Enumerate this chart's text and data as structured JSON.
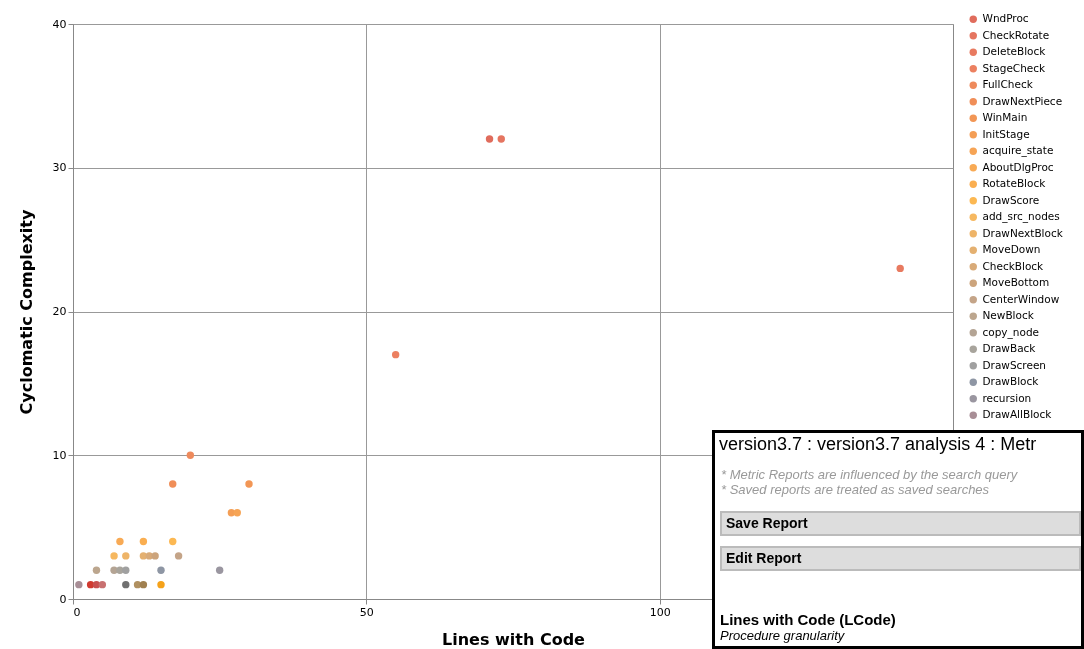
{
  "chart_data": [
    {
      "type": "scatter",
      "xlabel": "Lines with Code",
      "ylabel": "Cyclomatic Complexity",
      "xlim": [
        0,
        150
      ],
      "ylim": [
        0,
        40
      ],
      "xticks": [
        0,
        50,
        100
      ],
      "yticks": [
        0,
        10,
        20,
        30,
        40
      ],
      "grid": true,
      "legend": "right",
      "marker": "circle",
      "series": [
        {
          "name": "WndProc",
          "color": "#e06c5c",
          "x": [
            71
          ],
          "values": [
            32
          ]
        },
        {
          "name": "CheckRotate",
          "color": "#e57560",
          "x": [
            73
          ],
          "values": [
            32
          ]
        },
        {
          "name": "DeleteBlock",
          "color": "#e87a60",
          "x": [
            141
          ],
          "values": [
            23
          ]
        },
        {
          "name": "StageCheck",
          "color": "#ec8060",
          "x": [
            55
          ],
          "values": [
            17
          ]
        },
        {
          "name": "FullCheck",
          "color": "#ee8a5c",
          "x": [
            20
          ],
          "values": [
            10
          ]
        },
        {
          "name": "DrawNextPiece",
          "color": "#f08e58",
          "x": [
            17
          ],
          "values": [
            8
          ]
        },
        {
          "name": "WinMain",
          "color": "#f29655",
          "x": [
            30
          ],
          "values": [
            8
          ]
        },
        {
          "name": "InitStage",
          "color": "#f49e55",
          "x": [
            27
          ],
          "values": [
            6
          ]
        },
        {
          "name": "acquire_state",
          "color": "#f6a455",
          "x": [
            28
          ],
          "values": [
            6
          ]
        },
        {
          "name": "AboutDlgProc",
          "color": "#f8aa55",
          "x": [
            8
          ],
          "values": [
            4
          ]
        },
        {
          "name": "RotateBlock",
          "color": "#faae50",
          "x": [
            12
          ],
          "values": [
            4
          ]
        },
        {
          "name": "DrawScore",
          "color": "#fcb852",
          "x": [
            17
          ],
          "values": [
            4
          ]
        },
        {
          "name": "add_src_nodes",
          "color": "#f6b860",
          "x": [
            7
          ],
          "values": [
            3
          ]
        },
        {
          "name": "DrawNextBlock",
          "color": "#eeb468",
          "x": [
            9
          ],
          "values": [
            3
          ]
        },
        {
          "name": "MoveDown",
          "color": "#e4b070",
          "x": [
            12
          ],
          "values": [
            3
          ]
        },
        {
          "name": "CheckBlock",
          "color": "#d8aa78",
          "x": [
            13
          ],
          "values": [
            3
          ]
        },
        {
          "name": "MoveBottom",
          "color": "#cca47c",
          "x": [
            14
          ],
          "values": [
            3
          ]
        },
        {
          "name": "CenterWindow",
          "color": "#c4a488",
          "x": [
            18
          ],
          "values": [
            3
          ]
        },
        {
          "name": "NewBlock",
          "color": "#bca68e",
          "x": [
            4
          ],
          "values": [
            2
          ]
        },
        {
          "name": "copy_node",
          "color": "#b4a494",
          "x": [
            7
          ],
          "values": [
            2
          ]
        },
        {
          "name": "DrawBack",
          "color": "#a8a49c",
          "x": [
            8
          ],
          "values": [
            2
          ]
        },
        {
          "name": "DrawScreen",
          "color": "#a0a0a0",
          "x": [
            9
          ],
          "values": [
            2
          ]
        },
        {
          "name": "DrawBlock",
          "color": "#8e96a4",
          "x": [
            15
          ],
          "values": [
            2
          ]
        },
        {
          "name": "recursion",
          "color": "#9a96a0",
          "x": [
            25
          ],
          "values": [
            2
          ]
        },
        {
          "name": "DrawAllBlock",
          "color": "#a88e96",
          "x": [
            1
          ],
          "values": [
            1
          ]
        },
        {
          "color": "#d03a30",
          "x": [
            3
          ],
          "values": [
            1
          ]
        },
        {
          "color": "#c85050",
          "x": [
            4
          ],
          "values": [
            1
          ]
        },
        {
          "color": "#c87070",
          "x": [
            5
          ],
          "values": [
            1
          ]
        },
        {
          "color": "#707070",
          "x": [
            9
          ],
          "values": [
            1
          ]
        },
        {
          "color": "#b09060",
          "x": [
            11
          ],
          "values": [
            1
          ]
        },
        {
          "color": "#a08050",
          "x": [
            12
          ],
          "values": [
            1
          ]
        },
        {
          "color": "#f5a21a",
          "x": [
            15
          ],
          "values": [
            1
          ]
        }
      ]
    },
    {
      "type": "other",
      "title": "version3.7 : version3.7 analysis 4 : Metr",
      "annotations": [
        "* Metric Reports are influenced by the search query",
        "* Saved reports are treated as saved searches",
        "Save Report",
        "Edit Report",
        "Lines with Code (LCode)",
        "Procedure granularity"
      ]
    }
  ]
}
